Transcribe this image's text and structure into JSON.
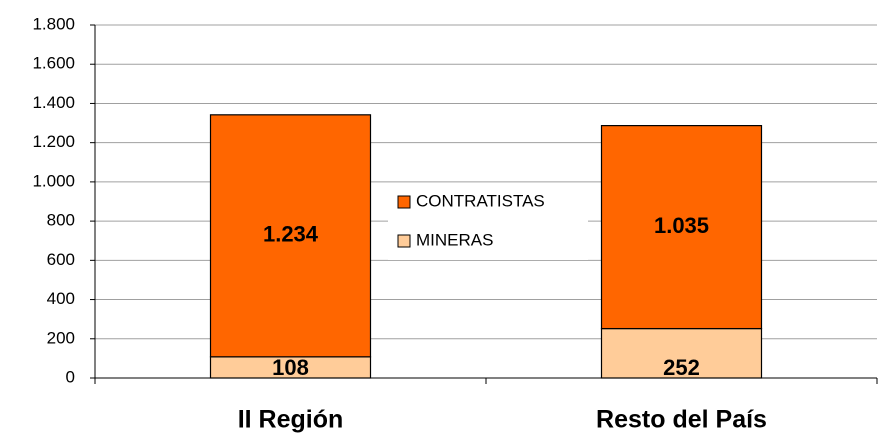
{
  "chart_data": {
    "type": "stacked_bar",
    "categories": [
      "II Región",
      "Resto del País"
    ],
    "series": [
      {
        "name": "MINERAS",
        "color": "#ffcc99",
        "values": [
          108,
          252
        ]
      },
      {
        "name": "CONTRATISTAS",
        "color": "#ff6600",
        "values": [
          1234,
          1035
        ],
        "value_labels": [
          "1.234",
          "1.035"
        ]
      }
    ],
    "ylim": [
      0,
      1800
    ],
    "yticks": [
      0,
      200,
      400,
      600,
      800,
      {
        "value": 1000,
        "label": "1.000"
      },
      {
        "value": 1200,
        "label": "1.200"
      },
      {
        "value": 1400,
        "label": "1.400"
      },
      {
        "value": 1600,
        "label": "1.600"
      },
      {
        "value": 1800,
        "label": "1.800"
      }
    ],
    "grid": true
  }
}
